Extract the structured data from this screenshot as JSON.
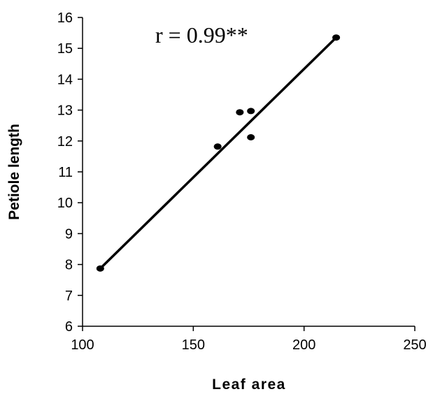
{
  "chart_data": {
    "type": "scatter",
    "xlabel": "Leaf area",
    "ylabel": "Petiole length",
    "xlim": [
      100,
      250
    ],
    "ylim": [
      6,
      16
    ],
    "x_ticks": [
      "100",
      "150",
      "200",
      "250"
    ],
    "y_ticks": [
      "6",
      "7",
      "8",
      "9",
      "10",
      "11",
      "12",
      "13",
      "14",
      "15",
      "16"
    ],
    "points": [
      {
        "x": 108,
        "y": 7.87
      },
      {
        "x": 161,
        "y": 11.82
      },
      {
        "x": 171,
        "y": 12.93
      },
      {
        "x": 176,
        "y": 12.97
      },
      {
        "x": 176,
        "y": 12.12
      },
      {
        "x": 214.5,
        "y": 15.35
      }
    ],
    "trendline": {
      "x": [
        108,
        214.5
      ],
      "y": [
        7.87,
        15.35
      ]
    },
    "annotation": "r = 0.99**",
    "grid": false,
    "legend": "none",
    "colors": {
      "marker": "#000000",
      "line": "#000000",
      "axis": "#000000"
    }
  }
}
